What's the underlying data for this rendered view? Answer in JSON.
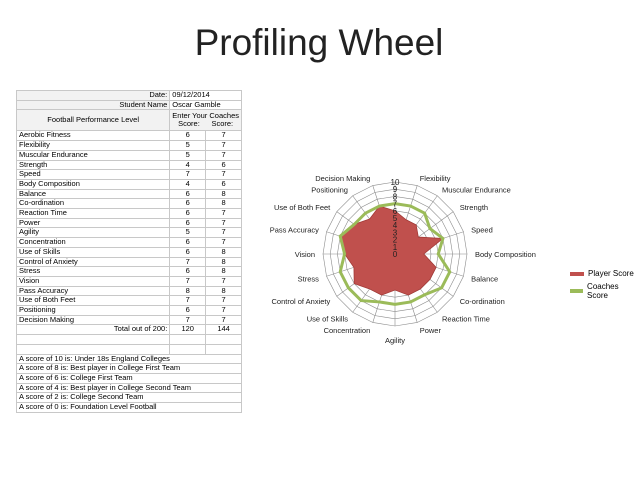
{
  "title": "Profiling Wheel",
  "sheet": {
    "date_label": "Date:",
    "date_value": "09/12/2014",
    "student_label": "Student Name",
    "student_value": "Oscar Gamble",
    "level_label": "Football Performance Level",
    "enter_label": "Enter Your Coaches",
    "score_header": "Score:",
    "coach_header": "Score:",
    "rows": [
      {
        "name": "Aerobic Fitness",
        "player": "6",
        "coach": "7"
      },
      {
        "name": "Flexibility",
        "player": "5",
        "coach": "7"
      },
      {
        "name": "Muscular Endurance",
        "player": "5",
        "coach": "7"
      },
      {
        "name": "Strength",
        "player": "4",
        "coach": "6"
      },
      {
        "name": "Speed",
        "player": "7",
        "coach": "7"
      },
      {
        "name": "Body Composition",
        "player": "4",
        "coach": "6"
      },
      {
        "name": "Balance",
        "player": "6",
        "coach": "8"
      },
      {
        "name": "Co-ordination",
        "player": "6",
        "coach": "8"
      },
      {
        "name": "Reaction Time",
        "player": "6",
        "coach": "7"
      },
      {
        "name": "Power",
        "player": "6",
        "coach": "7"
      },
      {
        "name": "Agility",
        "player": "5",
        "coach": "7"
      },
      {
        "name": "Concentration",
        "player": "6",
        "coach": "7"
      },
      {
        "name": "Use of Skills",
        "player": "6",
        "coach": "8"
      },
      {
        "name": "Control of Anxiety",
        "player": "7",
        "coach": "8"
      },
      {
        "name": "Stress",
        "player": "6",
        "coach": "8"
      },
      {
        "name": "Vision",
        "player": "7",
        "coach": "7"
      },
      {
        "name": "Pass Accuracy",
        "player": "8",
        "coach": "8"
      },
      {
        "name": "Use of Both Feet",
        "player": "7",
        "coach": "7"
      },
      {
        "name": "Positioning",
        "player": "6",
        "coach": "7"
      },
      {
        "name": "Decision Making",
        "player": "7",
        "coach": "7"
      }
    ],
    "total_label": "Total out of 200:",
    "total_player": "120",
    "total_coach": "144",
    "notes": [
      "A score of 10 is: Under 18s England Colleges",
      "A score of 8 is: Best player in College First Team",
      "A score of 6 is: College First Team",
      "A score of 4 is: Best player in College Second Team",
      "A score of 2 is: College Second Team",
      "A score of 0 is: Foundation Level Football"
    ]
  },
  "chart_data": {
    "type": "radar",
    "categories": [
      "Aerobic Fitness",
      "Flexibility",
      "Muscular Endurance",
      "Strength",
      "Speed",
      "Body Composition",
      "Balance",
      "Co-ordination",
      "Reaction Time",
      "Power",
      "Agility",
      "Concentration",
      "Use of Skills",
      "Control of Anxiety",
      "Stress",
      "Vision",
      "Pass Accuracy",
      "Use of Both Feet",
      "Positioning",
      "Decision Making"
    ],
    "series": [
      {
        "name": "Player Score",
        "color": "#c0504d",
        "values": [
          6,
          5,
          5,
          4,
          7,
          4,
          6,
          6,
          6,
          6,
          5,
          6,
          6,
          7,
          6,
          7,
          8,
          7,
          6,
          7
        ]
      },
      {
        "name": "Coaches Score",
        "color": "#9bbb59",
        "values": [
          7,
          7,
          7,
          6,
          7,
          6,
          8,
          8,
          7,
          7,
          7,
          7,
          8,
          8,
          8,
          7,
          8,
          7,
          7,
          7
        ]
      }
    ],
    "rmin": 0,
    "rmax": 10,
    "ticks": [
      "0",
      "1",
      "2",
      "3",
      "4",
      "5",
      "6",
      "7",
      "8",
      "9",
      "10"
    ],
    "legend_position": "right"
  }
}
